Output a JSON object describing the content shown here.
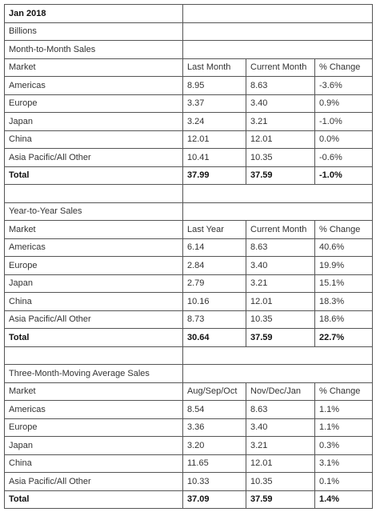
{
  "header": {
    "title": "Jan 2018",
    "unit": "Billions"
  },
  "sections": [
    {
      "title": "Month-to-Month Sales",
      "columns": [
        "Market",
        "Last Month",
        "Current Month",
        "% Change"
      ],
      "rows": [
        [
          "Americas",
          "8.95",
          "8.63",
          "-3.6%"
        ],
        [
          "Europe",
          "3.37",
          "3.40",
          "0.9%"
        ],
        [
          "Japan",
          "3.24",
          "3.21",
          "-1.0%"
        ],
        [
          "China",
          "12.01",
          "12.01",
          "0.0%"
        ],
        [
          "Asia Pacific/All Other",
          "10.41",
          "10.35",
          "-0.6%"
        ]
      ],
      "total": [
        "Total",
        "37.99",
        "37.59",
        "-1.0%"
      ]
    },
    {
      "title": "Year-to-Year Sales",
      "columns": [
        "Market",
        "Last Year",
        "Current Month",
        "% Change"
      ],
      "rows": [
        [
          "Americas",
          "6.14",
          "8.63",
          "40.6%"
        ],
        [
          "Europe",
          "2.84",
          "3.40",
          "19.9%"
        ],
        [
          "Japan",
          "2.79",
          "3.21",
          "15.1%"
        ],
        [
          "China",
          "10.16",
          "12.01",
          "18.3%"
        ],
        [
          "Asia Pacific/All Other",
          "8.73",
          "10.35",
          "18.6%"
        ]
      ],
      "total": [
        "Total",
        "30.64",
        "37.59",
        "22.7%"
      ]
    },
    {
      "title": "Three-Month-Moving Average Sales",
      "columns": [
        "Market",
        "Aug/Sep/Oct",
        "Nov/Dec/Jan",
        "% Change"
      ],
      "rows": [
        [
          "Americas",
          "8.54",
          "8.63",
          "1.1%"
        ],
        [
          "Europe",
          "3.36",
          "3.40",
          "1.1%"
        ],
        [
          "Japan",
          "3.20",
          "3.21",
          "0.3%"
        ],
        [
          "China",
          "11.65",
          "12.01",
          "3.1%"
        ],
        [
          "Asia Pacific/All Other",
          "10.33",
          "10.35",
          "0.1%"
        ]
      ],
      "total": [
        "Total",
        "37.09",
        "37.59",
        "1.4%"
      ]
    }
  ]
}
